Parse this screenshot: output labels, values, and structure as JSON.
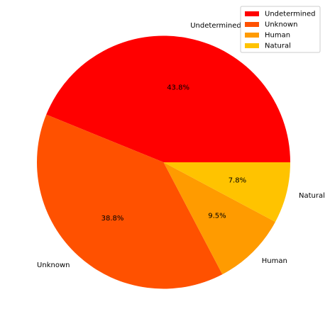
{
  "chart_data": {
    "type": "pie",
    "slices": [
      {
        "label": "Undetermined",
        "percent": 43.8,
        "pct_text": "43.8%",
        "color": "#FF0000"
      },
      {
        "label": "Unknown",
        "percent": 38.8,
        "pct_text": "38.8%",
        "color": "#FF5100"
      },
      {
        "label": "Human",
        "percent": 9.5,
        "pct_text": "9.5%",
        "color": "#FF9B00"
      },
      {
        "label": "Natural",
        "percent": 7.8,
        "pct_text": "7.8%",
        "color": "#FFC300"
      }
    ],
    "start_angle_deg": 0,
    "direction": "counterclockwise",
    "legend": {
      "position": "top-right",
      "entries": [
        "Undetermined",
        "Unknown",
        "Human",
        "Natural"
      ]
    }
  }
}
